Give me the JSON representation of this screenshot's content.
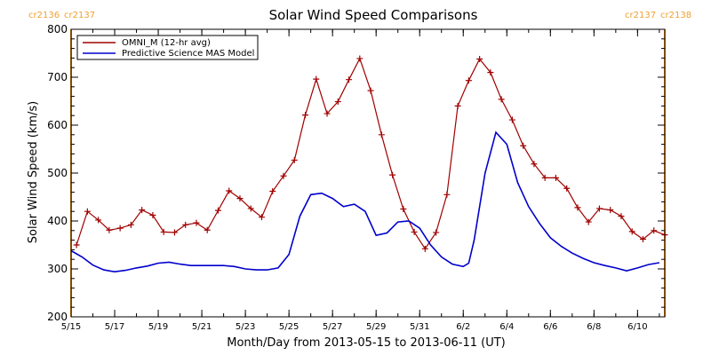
{
  "colors": {
    "omni": "#a00000",
    "model": "#0000cc",
    "boundary": "#ff9900"
  },
  "chart_data": {
    "type": "line",
    "title": "Solar Wind Speed Comparisons",
    "xlabel": "Month/Day from 2013-05-15 to 2013-06-11 (UT)",
    "ylabel": "Solar Wind Speed (km/s)",
    "xlim": [
      "2013-05-15 00:00",
      "2013-06-11 06:00"
    ],
    "ylim": [
      200,
      800
    ],
    "yticks": [
      200,
      300,
      400,
      500,
      600,
      700,
      800
    ],
    "xticks": [
      {
        "date": "2013-05-15",
        "label": "5/15"
      },
      {
        "date": "2013-05-17",
        "label": "5/17"
      },
      {
        "date": "2013-05-19",
        "label": "5/19"
      },
      {
        "date": "2013-05-21",
        "label": "5/21"
      },
      {
        "date": "2013-05-23",
        "label": "5/23"
      },
      {
        "date": "2013-05-25",
        "label": "5/25"
      },
      {
        "date": "2013-05-27",
        "label": "5/27"
      },
      {
        "date": "2013-05-29",
        "label": "5/29"
      },
      {
        "date": "2013-05-31",
        "label": "5/31"
      },
      {
        "date": "2013-06-02",
        "label": "6/2"
      },
      {
        "date": "2013-06-04",
        "label": "6/4"
      },
      {
        "date": "2013-06-06",
        "label": "6/6"
      },
      {
        "date": "2013-06-08",
        "label": "6/8"
      },
      {
        "date": "2013-06-10",
        "label": "6/10"
      }
    ],
    "legend_position": "top-left",
    "carrington_markers": [
      {
        "label_left": "cr2136",
        "label_right": "cr2137",
        "date": "2013-05-15 00:00"
      },
      {
        "label_left": "cr2137",
        "label_right": "cr2138",
        "date": "2013-06-11 06:00"
      }
    ],
    "series": [
      {
        "name": "OMNI_M (12-hr avg)",
        "color": "#a00000",
        "markers": "plus",
        "points": [
          [
            "2013-05-15 06:00",
            350
          ],
          [
            "2013-05-15 18:00",
            420
          ],
          [
            "2013-05-16 06:00",
            402
          ],
          [
            "2013-05-16 18:00",
            381
          ],
          [
            "2013-05-17 06:00",
            385
          ],
          [
            "2013-05-17 18:00",
            392
          ],
          [
            "2013-05-18 06:00",
            423
          ],
          [
            "2013-05-18 18:00",
            412
          ],
          [
            "2013-05-19 06:00",
            377
          ],
          [
            "2013-05-19 18:00",
            376
          ],
          [
            "2013-05-20 06:00",
            392
          ],
          [
            "2013-05-20 18:00",
            396
          ],
          [
            "2013-05-21 06:00",
            381
          ],
          [
            "2013-05-21 18:00",
            422
          ],
          [
            "2013-05-22 06:00",
            463
          ],
          [
            "2013-05-22 18:00",
            447
          ],
          [
            "2013-05-23 06:00",
            426
          ],
          [
            "2013-05-23 18:00",
            408
          ],
          [
            "2013-05-24 06:00",
            462
          ],
          [
            "2013-05-24 18:00",
            494
          ],
          [
            "2013-05-25 06:00",
            527
          ],
          [
            "2013-05-25 18:00",
            621
          ],
          [
            "2013-05-26 06:00",
            696
          ],
          [
            "2013-05-26 18:00",
            624
          ],
          [
            "2013-05-27 06:00",
            649
          ],
          [
            "2013-05-27 18:00",
            695
          ],
          [
            "2013-05-28 06:00",
            739
          ],
          [
            "2013-05-28 18:00",
            672
          ],
          [
            "2013-05-29 06:00",
            580
          ],
          [
            "2013-05-29 18:00",
            496
          ],
          [
            "2013-05-30 06:00",
            425
          ],
          [
            "2013-05-30 18:00",
            377
          ],
          [
            "2013-05-31 06:00",
            342
          ],
          [
            "2013-05-31 18:00",
            376
          ],
          [
            "2013-06-01 06:00",
            455
          ],
          [
            "2013-06-01 18:00",
            640
          ],
          [
            "2013-06-02 06:00",
            693
          ],
          [
            "2013-06-02 18:00",
            738
          ],
          [
            "2013-06-03 06:00",
            710
          ],
          [
            "2013-06-03 18:00",
            654
          ],
          [
            "2013-06-04 06:00",
            611
          ],
          [
            "2013-06-04 18:00",
            557
          ],
          [
            "2013-06-05 06:00",
            519
          ],
          [
            "2013-06-05 18:00",
            490
          ],
          [
            "2013-06-06 06:00",
            490
          ],
          [
            "2013-06-06 18:00",
            468
          ],
          [
            "2013-06-07 06:00",
            428
          ],
          [
            "2013-06-07 18:00",
            398
          ],
          [
            "2013-06-08 06:00",
            426
          ],
          [
            "2013-06-08 18:00",
            423
          ],
          [
            "2013-06-09 06:00",
            410
          ],
          [
            "2013-06-09 18:00",
            378
          ],
          [
            "2013-06-10 06:00",
            362
          ],
          [
            "2013-06-10 18:00",
            380
          ],
          [
            "2013-06-11 06:00",
            371
          ]
        ]
      },
      {
        "name": "Predictive Science MAS Model",
        "color": "#0000cc",
        "markers": "none",
        "points": [
          [
            "2013-05-15 00:00",
            338
          ],
          [
            "2013-05-15 12:00",
            325
          ],
          [
            "2013-05-16 00:00",
            308
          ],
          [
            "2013-05-16 12:00",
            298
          ],
          [
            "2013-05-17 00:00",
            294
          ],
          [
            "2013-05-17 12:00",
            297
          ],
          [
            "2013-05-18 00:00",
            302
          ],
          [
            "2013-05-18 12:00",
            306
          ],
          [
            "2013-05-19 00:00",
            312
          ],
          [
            "2013-05-19 12:00",
            314
          ],
          [
            "2013-05-20 00:00",
            310
          ],
          [
            "2013-05-20 12:00",
            307
          ],
          [
            "2013-05-21 00:00",
            307
          ],
          [
            "2013-05-21 12:00",
            307
          ],
          [
            "2013-05-22 00:00",
            307
          ],
          [
            "2013-05-22 12:00",
            305
          ],
          [
            "2013-05-23 00:00",
            300
          ],
          [
            "2013-05-23 12:00",
            298
          ],
          [
            "2013-05-24 00:00",
            298
          ],
          [
            "2013-05-24 12:00",
            302
          ],
          [
            "2013-05-25 00:00",
            330
          ],
          [
            "2013-05-25 12:00",
            410
          ],
          [
            "2013-05-26 00:00",
            455
          ],
          [
            "2013-05-26 12:00",
            458
          ],
          [
            "2013-05-27 00:00",
            447
          ],
          [
            "2013-05-27 12:00",
            430
          ],
          [
            "2013-05-28 00:00",
            435
          ],
          [
            "2013-05-28 12:00",
            420
          ],
          [
            "2013-05-29 00:00",
            370
          ],
          [
            "2013-05-29 12:00",
            375
          ],
          [
            "2013-05-30 00:00",
            398
          ],
          [
            "2013-05-30 12:00",
            400
          ],
          [
            "2013-05-31 00:00",
            385
          ],
          [
            "2013-05-31 12:00",
            350
          ],
          [
            "2013-06-01 00:00",
            325
          ],
          [
            "2013-06-01 12:00",
            310
          ],
          [
            "2013-06-02 00:00",
            305
          ],
          [
            "2013-06-02 06:00",
            312
          ],
          [
            "2013-06-02 12:00",
            360
          ],
          [
            "2013-06-03 00:00",
            500
          ],
          [
            "2013-06-03 12:00",
            585
          ],
          [
            "2013-06-04 00:00",
            560
          ],
          [
            "2013-06-04 12:00",
            480
          ],
          [
            "2013-06-05 00:00",
            430
          ],
          [
            "2013-06-05 12:00",
            395
          ],
          [
            "2013-06-06 00:00",
            365
          ],
          [
            "2013-06-06 12:00",
            347
          ],
          [
            "2013-06-07 00:00",
            333
          ],
          [
            "2013-06-07 12:00",
            322
          ],
          [
            "2013-06-08 00:00",
            313
          ],
          [
            "2013-06-08 12:00",
            307
          ],
          [
            "2013-06-09 00:00",
            302
          ],
          [
            "2013-06-09 12:00",
            296
          ],
          [
            "2013-06-10 00:00",
            302
          ],
          [
            "2013-06-10 12:00",
            309
          ],
          [
            "2013-06-11 00:00",
            313
          ]
        ]
      }
    ]
  }
}
